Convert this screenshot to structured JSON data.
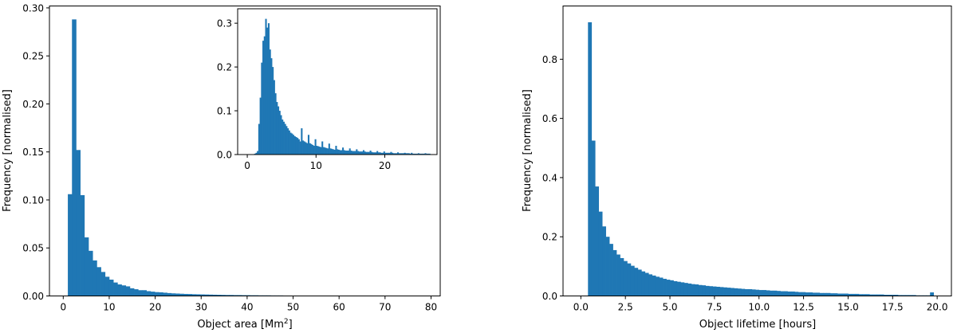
{
  "chart_data": [
    {
      "id": "left",
      "type": "bar",
      "title": "",
      "xlabel": "Object area [Mm",
      "xlabel_sup": "2",
      "xlabel_suffix": "]",
      "ylabel": "Frequency [normalised]",
      "xlim": [
        -3,
        82
      ],
      "ylim": [
        0,
        0.302
      ],
      "xticks": [
        0,
        10,
        20,
        30,
        40,
        50,
        60,
        70,
        80
      ],
      "yticks": [
        0.0,
        0.05,
        0.1,
        0.15,
        0.2,
        0.25,
        0.3
      ],
      "xtick_labels": [
        "0",
        "10",
        "20",
        "30",
        "40",
        "50",
        "60",
        "70",
        "80"
      ],
      "ytick_labels": [
        "0.00",
        "0.05",
        "0.10",
        "0.15",
        "0.20",
        "0.25",
        "0.30"
      ],
      "color": "#1f77b4",
      "grid": false,
      "bin_width": 0.9,
      "bins_start": [
        1.0,
        1.9,
        2.8,
        3.7,
        4.6,
        5.5,
        6.4,
        7.3,
        8.2,
        9.1,
        10.0,
        10.9,
        11.8,
        12.7,
        13.6,
        14.5,
        15.4,
        16.3,
        17.2,
        18.1,
        19.0,
        19.9,
        20.8,
        21.7,
        22.6,
        23.5,
        24.4,
        25.3,
        26.2,
        27.1,
        28.0,
        28.9,
        29.8,
        30.7,
        31.6,
        32.5,
        33.4,
        34.3,
        35.2,
        36.1,
        37.0,
        37.9,
        38.8,
        39.7,
        40.6,
        41.5,
        42.4,
        43.3,
        44.2,
        45.1,
        46.0,
        46.9,
        47.8,
        48.7,
        49.6,
        50.5,
        51.4,
        52.3,
        53.2,
        54.1,
        55.0,
        55.9,
        56.8,
        57.7,
        58.6,
        59.5,
        60.4,
        61.3,
        62.2,
        63.1,
        64.0,
        64.9,
        65.8,
        66.7,
        67.6,
        68.5,
        69.5,
        70.4,
        71.3,
        72.2,
        73.1,
        74.0,
        74.9,
        75.8,
        76.7,
        77.6
      ],
      "values": [
        0.106,
        0.288,
        0.152,
        0.105,
        0.061,
        0.047,
        0.037,
        0.03,
        0.025,
        0.02,
        0.017,
        0.014,
        0.012,
        0.011,
        0.01,
        0.008,
        0.007,
        0.006,
        0.006,
        0.005,
        0.0045,
        0.004,
        0.0038,
        0.0034,
        0.003,
        0.0027,
        0.0025,
        0.0023,
        0.0021,
        0.002,
        0.0018,
        0.0017,
        0.0016,
        0.0015,
        0.0014,
        0.0013,
        0.0012,
        0.0011,
        0.001,
        0.001,
        0.0009,
        0.0009,
        0.0008,
        0.0008,
        0.0007,
        0.0007,
        0.0006,
        0.0006,
        0.0006,
        0.0005,
        0.0005,
        0.0005,
        0.0004,
        0.0004,
        0.0004,
        0.0004,
        0.0003,
        0.0003,
        0.0003,
        0.0003,
        0.0003,
        0.0003,
        0.0002,
        0.0002,
        0.0002,
        0.0002,
        0.0002,
        0.0002,
        0.0002,
        0.0002,
        0.0001,
        0.0001,
        0.0001,
        0.0001,
        0.0001,
        0.0001,
        0.0001,
        0.0001,
        0.0001,
        0.0001,
        0.0001,
        0.0001,
        0.0001,
        0.0001,
        0.0001,
        0.0001
      ]
    },
    {
      "id": "inset",
      "type": "bar",
      "title": "",
      "xlabel": "",
      "ylabel": "",
      "xlim": [
        -1.4,
        27.6
      ],
      "ylim": [
        0,
        0.333
      ],
      "xticks": [
        0,
        10,
        20
      ],
      "yticks": [
        0.0,
        0.1,
        0.2,
        0.3
      ],
      "xtick_labels": [
        "0",
        "10",
        "20"
      ],
      "ytick_labels": [
        "0.0",
        "0.1",
        "0.2",
        "0.3"
      ],
      "color": "#1f77b4",
      "grid": false,
      "bin_width": 0.2,
      "bins_start": [
        1.0,
        1.2,
        1.4,
        1.6,
        1.8,
        2.0,
        2.2,
        2.4,
        2.6,
        2.8,
        3.0,
        3.2,
        3.4,
        3.6,
        3.8,
        4.0,
        4.2,
        4.4,
        4.6,
        4.8,
        5.0,
        5.2,
        5.4,
        5.6,
        5.8,
        6.0,
        6.2,
        6.4,
        6.6,
        6.8,
        7.0,
        7.2,
        7.4,
        7.6,
        7.8,
        8.0,
        8.2,
        8.4,
        8.6,
        8.8,
        9.0,
        9.2,
        9.4,
        9.6,
        9.8,
        10.0,
        10.2,
        10.4,
        10.6,
        10.8,
        11.0,
        11.2,
        11.4,
        11.6,
        11.8,
        12.0,
        12.2,
        12.4,
        12.6,
        12.8,
        13.0,
        13.2,
        13.4,
        13.6,
        13.8,
        14.0,
        14.2,
        14.4,
        14.6,
        14.8,
        15.0,
        15.2,
        15.4,
        15.6,
        15.8,
        16.0,
        16.2,
        16.4,
        16.6,
        16.8,
        17.0,
        17.2,
        17.4,
        17.6,
        17.8,
        18.0,
        18.2,
        18.4,
        18.6,
        18.8,
        19.0,
        19.2,
        19.4,
        19.6,
        19.8,
        20.0,
        20.2,
        20.4,
        20.6,
        20.8,
        21.0,
        21.2,
        21.4,
        21.6,
        21.8,
        22.0,
        22.2,
        22.4,
        22.6,
        22.8,
        23.0,
        23.2,
        23.4,
        23.6,
        23.8,
        24.0,
        24.2,
        24.4,
        24.6,
        24.8,
        25.0,
        25.2,
        25.4,
        25.6,
        25.8,
        26.0,
        26.2,
        26.4
      ],
      "values": [
        0.002,
        0.004,
        0.008,
        0.07,
        0.13,
        0.21,
        0.26,
        0.27,
        0.31,
        0.29,
        0.3,
        0.24,
        0.22,
        0.2,
        0.17,
        0.14,
        0.12,
        0.11,
        0.1,
        0.09,
        0.08,
        0.075,
        0.07,
        0.065,
        0.06,
        0.055,
        0.05,
        0.048,
        0.045,
        0.042,
        0.04,
        0.038,
        0.035,
        0.03,
        0.06,
        0.032,
        0.03,
        0.028,
        0.026,
        0.045,
        0.026,
        0.024,
        0.022,
        0.02,
        0.035,
        0.02,
        0.019,
        0.018,
        0.017,
        0.03,
        0.017,
        0.016,
        0.015,
        0.014,
        0.025,
        0.014,
        0.013,
        0.012,
        0.011,
        0.02,
        0.012,
        0.011,
        0.01,
        0.01,
        0.016,
        0.01,
        0.009,
        0.009,
        0.009,
        0.014,
        0.009,
        0.008,
        0.008,
        0.008,
        0.012,
        0.008,
        0.007,
        0.007,
        0.007,
        0.01,
        0.007,
        0.006,
        0.006,
        0.006,
        0.009,
        0.006,
        0.005,
        0.005,
        0.005,
        0.008,
        0.005,
        0.005,
        0.004,
        0.004,
        0.007,
        0.004,
        0.004,
        0.004,
        0.004,
        0.006,
        0.004,
        0.003,
        0.003,
        0.003,
        0.005,
        0.003,
        0.003,
        0.003,
        0.003,
        0.004,
        0.003,
        0.003,
        0.003,
        0.002,
        0.004,
        0.002,
        0.002,
        0.002,
        0.002,
        0.003,
        0.002,
        0.002,
        0.002,
        0.002,
        0.003,
        0.002,
        0.002,
        0.002
      ]
    },
    {
      "id": "right",
      "type": "bar",
      "title": "",
      "xlabel": "Object lifetime [hours]",
      "ylabel": "Frequency [normalised]",
      "xlim": [
        -1.0,
        20.8
      ],
      "ylim": [
        0,
        0.98
      ],
      "xticks": [
        0.0,
        2.5,
        5.0,
        7.5,
        10.0,
        12.5,
        15.0,
        17.5,
        20.0
      ],
      "yticks": [
        0.0,
        0.2,
        0.4,
        0.6,
        0.8
      ],
      "xtick_labels": [
        "0.0",
        "2.5",
        "5.0",
        "7.5",
        "10.0",
        "12.5",
        "15.0",
        "17.5",
        "20.0"
      ],
      "ytick_labels": [
        "0.0",
        "0.2",
        "0.4",
        "0.6",
        "0.8"
      ],
      "color": "#1f77b4",
      "grid": false,
      "bin_width": 0.2,
      "bins_start": [
        0.4,
        0.6,
        0.8,
        1.0,
        1.2,
        1.4,
        1.6,
        1.8,
        2.0,
        2.2,
        2.4,
        2.6,
        2.8,
        3.0,
        3.2,
        3.4,
        3.6,
        3.8,
        4.0,
        4.2,
        4.4,
        4.6,
        4.8,
        5.0,
        5.2,
        5.4,
        5.6,
        5.8,
        6.0,
        6.2,
        6.4,
        6.6,
        6.8,
        7.0,
        7.2,
        7.4,
        7.6,
        7.8,
        8.0,
        8.2,
        8.4,
        8.6,
        8.8,
        9.0,
        9.2,
        9.4,
        9.6,
        9.8,
        10.0,
        10.2,
        10.4,
        10.6,
        10.8,
        11.0,
        11.2,
        11.4,
        11.6,
        11.8,
        12.0,
        12.2,
        12.4,
        12.6,
        12.8,
        13.0,
        13.2,
        13.4,
        13.6,
        13.8,
        14.0,
        14.2,
        14.4,
        14.6,
        14.8,
        15.0,
        15.2,
        15.4,
        15.6,
        15.8,
        16.0,
        16.2,
        16.4,
        16.6,
        16.8,
        17.0,
        17.2,
        17.4,
        17.6,
        17.8,
        18.0,
        18.2,
        18.4,
        18.6,
        18.8,
        19.0,
        19.2,
        19.4,
        19.6
      ],
      "values": [
        0.925,
        0.525,
        0.37,
        0.285,
        0.235,
        0.2,
        0.176,
        0.155,
        0.14,
        0.128,
        0.118,
        0.11,
        0.102,
        0.095,
        0.089,
        0.083,
        0.078,
        0.073,
        0.069,
        0.065,
        0.062,
        0.058,
        0.055,
        0.053,
        0.05,
        0.048,
        0.046,
        0.044,
        0.042,
        0.04,
        0.039,
        0.037,
        0.036,
        0.034,
        0.033,
        0.032,
        0.031,
        0.03,
        0.029,
        0.028,
        0.027,
        0.026,
        0.025,
        0.024,
        0.023,
        0.023,
        0.022,
        0.021,
        0.02,
        0.02,
        0.019,
        0.018,
        0.018,
        0.017,
        0.016,
        0.016,
        0.015,
        0.015,
        0.014,
        0.013,
        0.013,
        0.012,
        0.012,
        0.011,
        0.011,
        0.01,
        0.01,
        0.01,
        0.009,
        0.009,
        0.008,
        0.008,
        0.008,
        0.007,
        0.007,
        0.007,
        0.006,
        0.006,
        0.006,
        0.005,
        0.005,
        0.005,
        0.005,
        0.004,
        0.004,
        0.004,
        0.004,
        0.003,
        0.003,
        0.003,
        0.003,
        0.003,
        0.002,
        0.002,
        0.002,
        0.002,
        0.012
      ]
    }
  ]
}
